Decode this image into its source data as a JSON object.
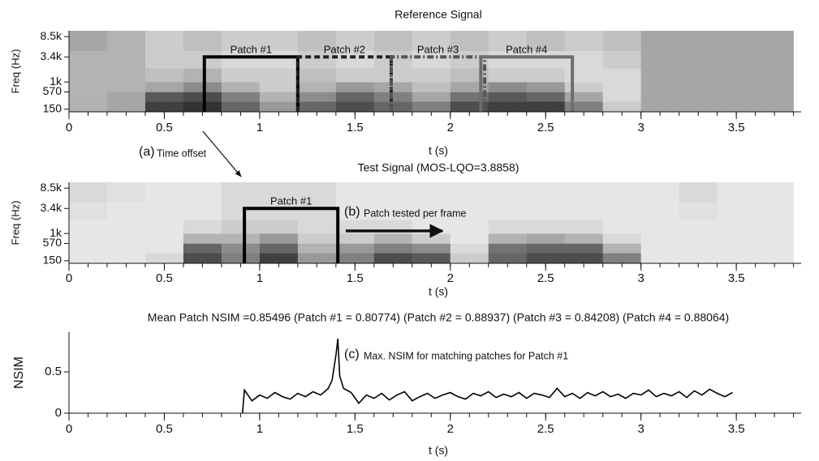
{
  "chart_data": [
    {
      "type": "spectrogram",
      "title": "Reference Signal",
      "xlabel": "t (s)",
      "ylabel": "Freq (Hz)",
      "xlim": [
        0,
        3.84
      ],
      "xticks": [
        0,
        0.5,
        1,
        1.5,
        2,
        2.5,
        3,
        3.5
      ],
      "ylim": [
        110,
        11000
      ],
      "yscale": "erb",
      "yticks": [
        150,
        570,
        {
          "value": 1000,
          "label": "1k"
        },
        {
          "value": 3400,
          "label": "3.4k"
        },
        {
          "value": 8500,
          "label": "8.5k"
        }
      ],
      "bins": [
        0,
        0.2,
        0.4,
        0.6,
        0.8,
        1.0,
        1.2,
        1.4,
        1.6,
        1.8,
        2.0,
        2.2,
        2.4,
        2.6,
        2.8,
        3.0,
        3.2,
        3.4,
        3.6,
        3.8
      ],
      "freq_bins": [
        110,
        300,
        570,
        1000,
        2000,
        4500,
        11000
      ],
      "z": [
        [
          0.3,
          0.35,
          0.75,
          0.8,
          0.6,
          0.4,
          0.6,
          0.7,
          0.6,
          0.5,
          0.7,
          0.75,
          0.75,
          0.5,
          0.2,
          0.35,
          0.35,
          0.35,
          0.35
        ],
        [
          0.3,
          0.35,
          0.65,
          0.7,
          0.5,
          0.3,
          0.45,
          0.6,
          0.5,
          0.35,
          0.55,
          0.65,
          0.6,
          0.35,
          0.15,
          0.35,
          0.35,
          0.35,
          0.35
        ],
        [
          0.3,
          0.3,
          0.35,
          0.45,
          0.3,
          0.2,
          0.3,
          0.4,
          0.35,
          0.25,
          0.35,
          0.45,
          0.4,
          0.2,
          0.15,
          0.35,
          0.35,
          0.35,
          0.35
        ],
        [
          0.3,
          0.3,
          0.25,
          0.3,
          0.2,
          0.2,
          0.25,
          0.2,
          0.2,
          0.2,
          0.25,
          0.2,
          0.2,
          0.15,
          0.15,
          0.35,
          0.35,
          0.35,
          0.35
        ],
        [
          0.3,
          0.3,
          0.2,
          0.2,
          0.15,
          0.15,
          0.2,
          0.15,
          0.2,
          0.15,
          0.2,
          0.15,
          0.15,
          0.15,
          0.2,
          0.35,
          0.35,
          0.35,
          0.35
        ],
        [
          0.35,
          0.3,
          0.2,
          0.25,
          0.2,
          0.2,
          0.25,
          0.2,
          0.25,
          0.2,
          0.25,
          0.2,
          0.25,
          0.2,
          0.25,
          0.35,
          0.35,
          0.35,
          0.35
        ]
      ],
      "patches": [
        {
          "label": "Patch #1",
          "x": [
            0.71,
            1.2
          ],
          "y": [
            110,
            3400
          ],
          "color": "#000000",
          "dash": "none"
        },
        {
          "label": "Patch #2",
          "x": [
            1.2,
            1.69
          ],
          "y": [
            110,
            3400
          ],
          "color": "#222222",
          "dash": "7 4"
        },
        {
          "label": "Patch #3",
          "x": [
            1.69,
            2.18
          ],
          "y": [
            110,
            3400
          ],
          "color": "#555555",
          "dash": "8 3 2 3"
        },
        {
          "label": "Patch #4",
          "x": [
            2.16,
            2.64
          ],
          "y": [
            110,
            3400
          ],
          "color": "#6e6e6e",
          "dash": "none"
        }
      ],
      "annotations": [
        {
          "tag": "(a)",
          "text": "Time offset"
        }
      ]
    },
    {
      "type": "spectrogram",
      "title": "Test Signal (MOS-LQO=3.8858)",
      "xlabel": "t (s)",
      "ylabel": "Freq (Hz)",
      "xlim": [
        0,
        3.84
      ],
      "xticks": [
        0,
        0.5,
        1,
        1.5,
        2,
        2.5,
        3,
        3.5
      ],
      "ylim": [
        110,
        11000
      ],
      "yscale": "erb",
      "yticks": [
        150,
        570,
        {
          "value": 1000,
          "label": "1k"
        },
        {
          "value": 3400,
          "label": "3.4k"
        },
        {
          "value": 8500,
          "label": "8.5k"
        }
      ],
      "bins": [
        0,
        0.2,
        0.4,
        0.6,
        0.8,
        1.0,
        1.2,
        1.4,
        1.6,
        1.8,
        2.0,
        2.2,
        2.4,
        2.6,
        2.8,
        3.0,
        3.2,
        3.4,
        3.6,
        3.8
      ],
      "freq_bins": [
        110,
        300,
        570,
        1000,
        2000,
        4500,
        11000
      ],
      "z": [
        [
          0.1,
          0.1,
          0.15,
          0.7,
          0.5,
          0.75,
          0.4,
          0.5,
          0.7,
          0.65,
          0.2,
          0.6,
          0.7,
          0.7,
          0.5,
          0.1,
          0.1,
          0.1,
          0.1
        ],
        [
          0.1,
          0.1,
          0.1,
          0.6,
          0.45,
          0.6,
          0.3,
          0.4,
          0.5,
          0.45,
          0.15,
          0.55,
          0.6,
          0.6,
          0.3,
          0.1,
          0.1,
          0.1,
          0.1
        ],
        [
          0.1,
          0.1,
          0.1,
          0.3,
          0.3,
          0.4,
          0.2,
          0.2,
          0.3,
          0.2,
          0.1,
          0.3,
          0.35,
          0.3,
          0.15,
          0.1,
          0.1,
          0.1,
          0.1
        ],
        [
          0.1,
          0.1,
          0.1,
          0.15,
          0.2,
          0.2,
          0.15,
          0.15,
          0.15,
          0.1,
          0.1,
          0.15,
          0.15,
          0.15,
          0.1,
          0.1,
          0.1,
          0.1,
          0.1
        ],
        [
          0.12,
          0.1,
          0.1,
          0.1,
          0.15,
          0.15,
          0.15,
          0.1,
          0.1,
          0.1,
          0.1,
          0.1,
          0.1,
          0.1,
          0.1,
          0.1,
          0.12,
          0.1,
          0.1
        ],
        [
          0.15,
          0.12,
          0.1,
          0.1,
          0.15,
          0.15,
          0.15,
          0.1,
          0.1,
          0.1,
          0.1,
          0.1,
          0.1,
          0.1,
          0.1,
          0.1,
          0.15,
          0.1,
          0.1
        ]
      ],
      "patches": [
        {
          "label": "Patch #1",
          "x": [
            0.92,
            1.41
          ],
          "y": [
            110,
            3400
          ],
          "color": "#000000",
          "dash": "none"
        }
      ],
      "annotations": [
        {
          "tag": "(b)",
          "text": "Patch tested per frame"
        }
      ]
    },
    {
      "type": "line",
      "title": "Mean Patch NSIM =0.85496 (Patch #1 = 0.80774) (Patch #2 = 0.88937) (Patch #3 = 0.84208) (Patch #4 = 0.88064)",
      "xlabel": "t (s)",
      "ylabel": "NSIM",
      "xlim": [
        0,
        3.84
      ],
      "xticks": [
        0,
        0.5,
        1,
        1.5,
        2,
        2.5,
        3,
        3.5
      ],
      "ylim": [
        0,
        0.98
      ],
      "yticks": [
        0,
        0.5
      ],
      "color": "#000000",
      "x": [
        0.91,
        0.92,
        0.96,
        1.0,
        1.04,
        1.08,
        1.12,
        1.16,
        1.2,
        1.24,
        1.28,
        1.32,
        1.36,
        1.38,
        1.4,
        1.41,
        1.42,
        1.44,
        1.48,
        1.52,
        1.56,
        1.6,
        1.64,
        1.68,
        1.72,
        1.76,
        1.8,
        1.84,
        1.88,
        1.92,
        1.96,
        2.0,
        2.04,
        2.08,
        2.12,
        2.16,
        2.2,
        2.24,
        2.28,
        2.32,
        2.36,
        2.4,
        2.44,
        2.48,
        2.52,
        2.56,
        2.6,
        2.64,
        2.68,
        2.72,
        2.76,
        2.8,
        2.84,
        2.88,
        2.92,
        2.96,
        3.0,
        3.04,
        3.08,
        3.12,
        3.16,
        3.2,
        3.24,
        3.28,
        3.32,
        3.36,
        3.4,
        3.44,
        3.48
      ],
      "values": [
        0,
        0.28,
        0.15,
        0.22,
        0.18,
        0.25,
        0.2,
        0.17,
        0.24,
        0.2,
        0.26,
        0.22,
        0.3,
        0.4,
        0.7,
        0.9,
        0.45,
        0.3,
        0.25,
        0.12,
        0.22,
        0.18,
        0.24,
        0.16,
        0.22,
        0.26,
        0.15,
        0.2,
        0.24,
        0.18,
        0.22,
        0.25,
        0.2,
        0.17,
        0.24,
        0.21,
        0.26,
        0.19,
        0.23,
        0.2,
        0.25,
        0.18,
        0.24,
        0.22,
        0.19,
        0.3,
        0.2,
        0.24,
        0.18,
        0.25,
        0.21,
        0.26,
        0.2,
        0.23,
        0.18,
        0.24,
        0.22,
        0.28,
        0.2,
        0.24,
        0.21,
        0.26,
        0.19,
        0.27,
        0.22,
        0.29,
        0.24,
        0.2,
        0.25
      ],
      "annotations": [
        {
          "tag": "(c)",
          "text": "Max. NSIM for matching patches for Patch #1"
        }
      ]
    }
  ]
}
